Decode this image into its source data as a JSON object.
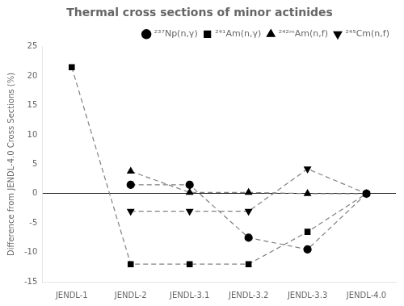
{
  "chart_data": {
    "type": "line",
    "title": "Thermal cross sections of minor actinides",
    "ylabel": "Difference from JENDL-4.0 Cross Sections (%)",
    "categories": [
      "JENDL-1",
      "JENDL-2",
      "JENDL-3.1",
      "JENDL-3.2",
      "JENDL-3.3",
      "JENDL-4.0"
    ],
    "series": [
      {
        "name": "²³⁷Np(n,γ)",
        "color": "black",
        "marker": "circle",
        "values": [
          null,
          1.5,
          1.5,
          -7.5,
          -9.5,
          0.0
        ]
      },
      {
        "name": "²⁴¹Am(n,γ)",
        "color": "black",
        "marker": "square",
        "values": [
          21.5,
          -12.0,
          -12.0,
          -12.0,
          -6.5,
          0.0
        ]
      },
      {
        "name": "²⁴²ᵐAm(n,f)",
        "color": "black",
        "marker": "triangle-up",
        "values": [
          null,
          3.8,
          0.2,
          0.2,
          0.0,
          0.0
        ]
      },
      {
        "name": "²⁴⁵Cm(n,f)",
        "color": "black",
        "marker": "triangle-down",
        "values": [
          null,
          -3.0,
          -3.0,
          -3.0,
          4.2,
          0.0
        ]
      }
    ],
    "color": "#808080",
    "line_style": "dashed",
    "ylim": [
      -15,
      25
    ],
    "yticks": [
      -15,
      -10,
      -5,
      0,
      5,
      10,
      15,
      20,
      25
    ],
    "grid": false,
    "legend": "upper right"
  }
}
